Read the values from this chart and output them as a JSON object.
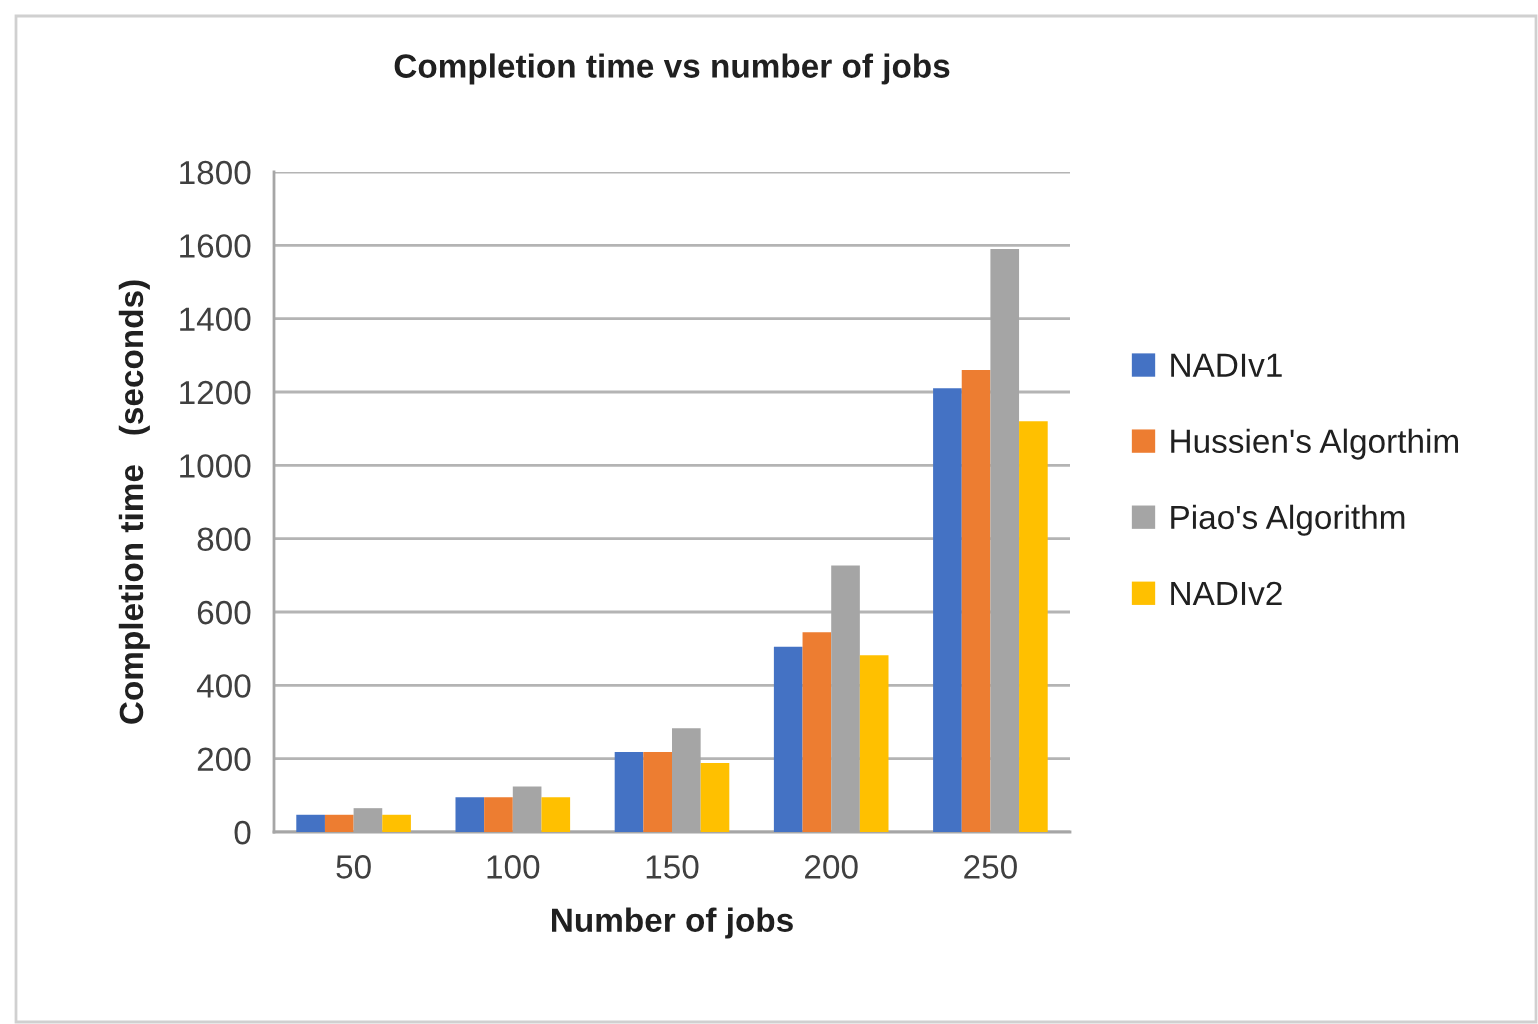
{
  "chart_data": {
    "type": "bar",
    "title": "Completion time vs number of jobs",
    "xlabel": "Number of jobs",
    "ylabel": "Completion time   (seconds)",
    "categories": [
      "50",
      "100",
      "150",
      "200",
      "250"
    ],
    "series": [
      {
        "name": "NADIv1",
        "color": "#4472c4",
        "values": [
          47,
          95,
          218,
          505,
          1210
        ]
      },
      {
        "name": "Hussien's Algorthim",
        "color": "#ed7d31",
        "values": [
          47,
          95,
          218,
          545,
          1260
        ]
      },
      {
        "name": "Piao's Algorithm",
        "color": "#a5a5a5",
        "values": [
          65,
          124,
          283,
          727,
          1590
        ]
      },
      {
        "name": "NADIv2",
        "color": "#ffc000",
        "values": [
          47,
          95,
          188,
          482,
          1120
        ]
      }
    ],
    "ylim": [
      0,
      1800
    ],
    "yticks": [
      0,
      200,
      400,
      600,
      800,
      1000,
      1200,
      1400,
      1600,
      1800
    ],
    "grid": "y",
    "legend": "right"
  }
}
